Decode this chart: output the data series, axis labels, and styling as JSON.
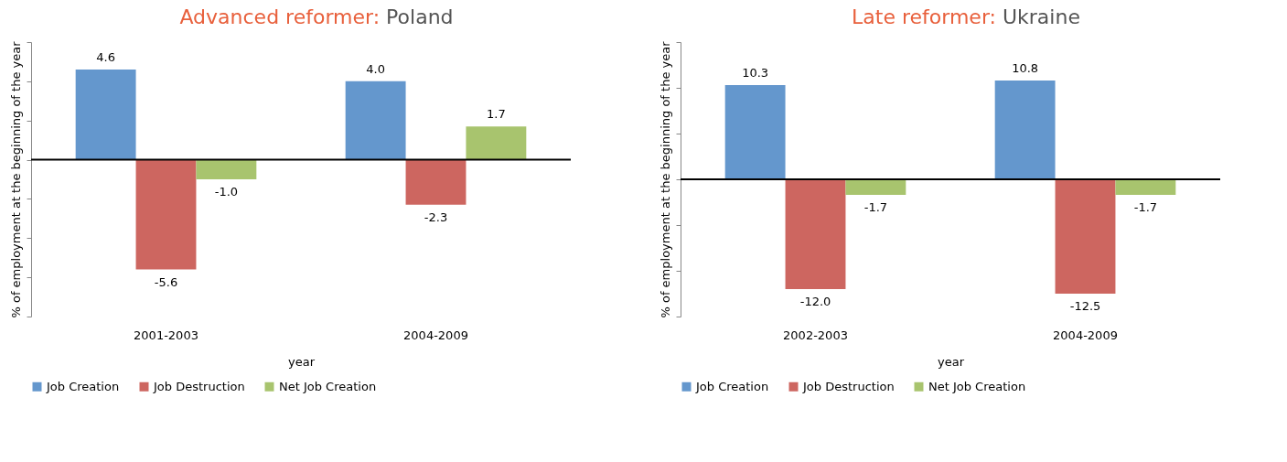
{
  "chart_data": [
    {
      "type": "bar",
      "title": "Advanced reformer: Poland",
      "xlabel": "year",
      "ylabel": "% of employment at the beginning of the year",
      "categories": [
        "2001-2003",
        "2004-2009"
      ],
      "series": [
        {
          "name": "Job Creation",
          "color": "#6497cd",
          "values": [
            4.6,
            4.0
          ],
          "value_labels": [
            "4.6",
            "4.0"
          ]
        },
        {
          "name": "Job Destruction",
          "color": "#cd6660",
          "values": [
            -5.6,
            -2.3
          ],
          "value_labels": [
            "-5.6",
            "-2.3"
          ]
        },
        {
          "name": "Net Job Creation",
          "color": "#a8c46e",
          "values": [
            -1.0,
            1.7
          ],
          "value_labels": [
            "-1.0",
            "1.7"
          ]
        }
      ],
      "ylim": [
        -8,
        6
      ],
      "yticks": [
        {
          "value": -8,
          "label": null
        },
        {
          "value": -6,
          "label": null
        },
        {
          "value": -4,
          "label": null
        },
        {
          "value": -2,
          "label": null
        },
        {
          "value": 0,
          "label": null
        },
        {
          "value": 2,
          "label": null
        },
        {
          "value": 4,
          "label": null
        },
        {
          "value": 6,
          "label": null
        }
      ],
      "tick_labels": "x",
      "grid": false,
      "legend": "bottom",
      "ref_lines": [
        {
          "axis": "y",
          "value": 0,
          "color": "#000000"
        }
      ]
    },
    {
      "type": "bar",
      "title": "Late reformer: Ukraine",
      "xlabel": "year",
      "ylabel": "% of employment at the beginning of the year",
      "categories": [
        "2002-2003",
        "2004-2009"
      ],
      "series": [
        {
          "name": "Job Creation",
          "color": "#6497cd",
          "values": [
            10.3,
            10.8
          ],
          "value_labels": [
            "10.3",
            "10.8"
          ]
        },
        {
          "name": "Job Destruction",
          "color": "#cd6660",
          "values": [
            -12.0,
            -12.5
          ],
          "value_labels": [
            "-12.0",
            "-12.5"
          ]
        },
        {
          "name": "Net Job Creation",
          "color": "#a8c46e",
          "values": [
            -1.7,
            -1.7
          ],
          "value_labels": [
            "-1.7",
            "-1.7"
          ]
        }
      ],
      "ylim": [
        -15,
        15
      ],
      "yticks": [
        {
          "value": -15,
          "label": null
        },
        {
          "value": -10,
          "label": null
        },
        {
          "value": -5,
          "label": null
        },
        {
          "value": 0,
          "label": null
        },
        {
          "value": 5,
          "label": null
        },
        {
          "value": 10,
          "label": null
        },
        {
          "value": 15,
          "label": null
        }
      ],
      "tick_labels": "x",
      "grid": false,
      "legend": "bottom",
      "ref_lines": [
        {
          "axis": "y",
          "value": 0,
          "color": "#000000"
        }
      ]
    }
  ]
}
